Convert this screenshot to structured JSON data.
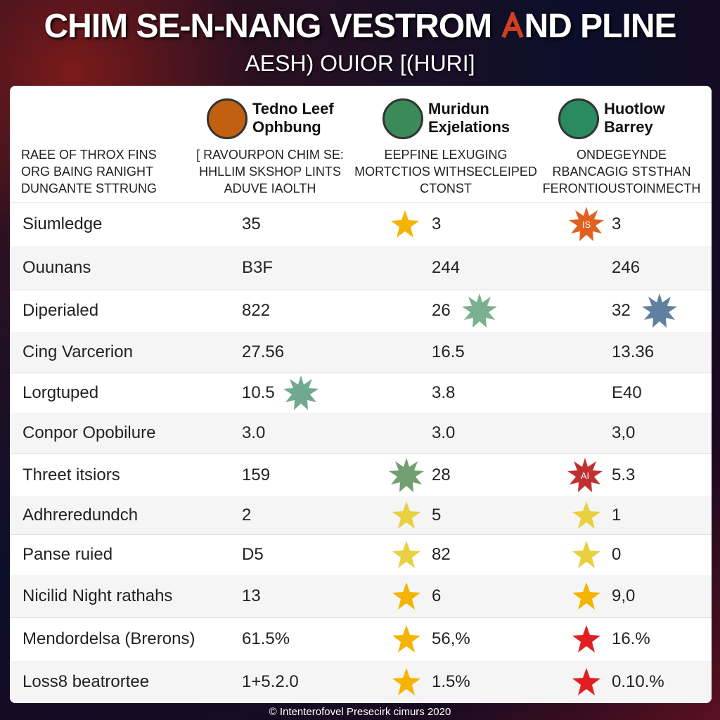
{
  "header": {
    "title_left": "CHIM SE-N-NANG VESTROM",
    "title_right": "ND PLINE",
    "subtitle": "AESH) OUIOR [(HURI]"
  },
  "row_header": [
    "RAEE OF THROX FINS",
    "ORG BAING RANIGHT",
    "DUNGANTE STTRUNG"
  ],
  "columns": [
    {
      "name": [
        "Tedno Leef",
        "Ophbung"
      ],
      "description": [
        "[ RAVOURPON CHIM SE:",
        "HHLLIM SKSHOP LINTS",
        "ADUVE IAOLTH"
      ]
    },
    {
      "name": [
        "Muridun",
        "Exjelations"
      ],
      "description": [
        "EEPFINE LEXUGING",
        "MORTCTIOS WITHSECLEIPED",
        "CTONST"
      ]
    },
    {
      "name": [
        "Huotlow",
        "Barrey"
      ],
      "description": [
        "ONDEGEYNDE",
        "RBANCAGIG STSTHAN",
        "FERONTIOUSTOINMECTH"
      ]
    }
  ],
  "rows": [
    {
      "label": "Siumledge",
      "values": [
        "35",
        "3",
        "3"
      ]
    },
    {
      "label": "Ouunans",
      "values": [
        "B3F",
        "244",
        "246"
      ]
    },
    {
      "label": "Diperialed",
      "values": [
        "822",
        "26",
        "32"
      ]
    },
    {
      "label": "Cing Varcerion",
      "values": [
        "27.56",
        "16.5",
        "13.36"
      ]
    },
    {
      "label": "Lorgtuped",
      "values": [
        "10.5",
        "3.8",
        "E40"
      ]
    },
    {
      "label": "Conpor Opobilure",
      "values": [
        "3.0",
        "3.0",
        "3,0"
      ]
    },
    {
      "label": "Threet itsiors",
      "values": [
        "159",
        "28",
        "5.3"
      ]
    },
    {
      "label": "Adhreredundch",
      "values": [
        "2",
        "5",
        "1"
      ]
    },
    {
      "label": "Panse ruied",
      "values": [
        "D5",
        "82",
        "0"
      ]
    },
    {
      "label": "Nicilid Night rathahs",
      "values": [
        "13",
        "6",
        "9,0"
      ]
    },
    {
      "label": "Mendordelsa (Brerons)",
      "values": [
        "61.5%",
        "56,%",
        "16.%"
      ]
    },
    {
      "label": "Loss8 beatrortee",
      "values": [
        "1+5.2.0",
        "1.5%",
        "0.10.%"
      ]
    }
  ],
  "footer": "© Intenterofovel Presecirk cimurs 2020"
}
